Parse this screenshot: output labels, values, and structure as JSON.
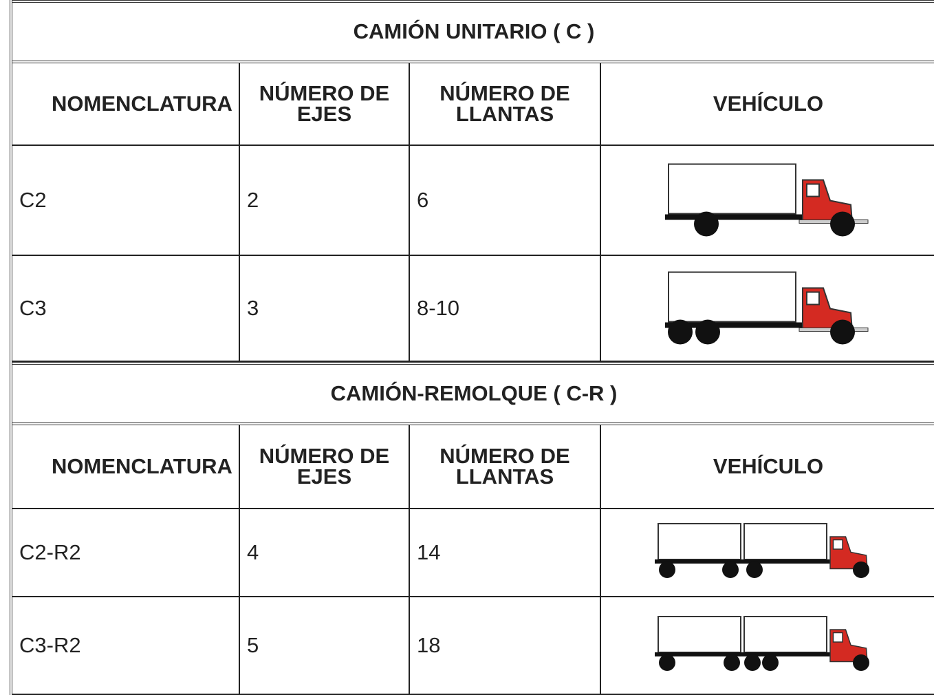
{
  "sections": [
    {
      "title": "CAMIÓN UNITARIO ( C )",
      "headers": [
        "NOMENCLATURA",
        "NÚMERO DE EJES",
        "NÚMERO DE LLANTAS",
        "VEHÍCULO"
      ],
      "rows": [
        [
          "C2",
          "2",
          "6"
        ],
        [
          "C3",
          "3",
          "8-10"
        ]
      ]
    },
    {
      "title": "CAMIÓN-REMOLQUE ( C-R )",
      "headers": [
        "NOMENCLATURA",
        "NÚMERO DE EJES",
        "NÚMERO DE LLANTAS",
        "VEHÍCULO"
      ],
      "rows": [
        [
          "C2-R2",
          "4",
          "14"
        ],
        [
          "C3-R2",
          "5",
          "18"
        ]
      ]
    }
  ]
}
